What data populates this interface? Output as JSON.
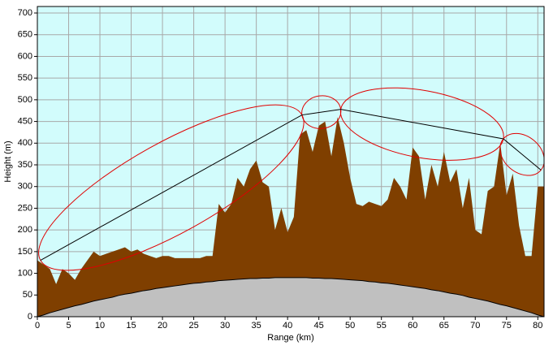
{
  "chart_data": {
    "type": "area",
    "x_label": "Range (km)",
    "y_label": "Height (m)",
    "xlim": [
      0,
      81
    ],
    "ylim": [
      0,
      715
    ],
    "xticks": [
      0,
      5,
      10,
      15,
      20,
      25,
      30,
      35,
      40,
      45,
      50,
      55,
      60,
      65,
      70,
      75,
      80
    ],
    "yticks": [
      0,
      50,
      100,
      150,
      200,
      250,
      300,
      350,
      400,
      450,
      500,
      550,
      600,
      650,
      700
    ],
    "grid": true,
    "background": "#d2fcfc",
    "x": [
      0,
      1,
      2,
      3,
      4,
      5,
      6,
      7,
      8,
      9,
      10,
      11,
      12,
      13,
      14,
      15,
      16,
      17,
      18,
      19,
      20,
      21,
      22,
      23,
      24,
      25,
      26,
      27,
      28,
      29,
      30,
      31,
      32,
      33,
      34,
      35,
      36,
      37,
      38,
      39,
      40,
      41,
      42,
      43,
      44,
      45,
      46,
      47,
      48,
      49,
      50,
      51,
      52,
      53,
      54,
      55,
      56,
      57,
      58,
      59,
      60,
      61,
      62,
      63,
      64,
      65,
      66,
      67,
      68,
      69,
      70,
      71,
      72,
      73,
      74,
      75,
      76,
      77,
      78,
      79,
      80,
      81
    ],
    "series": [
      {
        "color": "#7f3f00",
        "values": [
          130,
          120,
          110,
          75,
          110,
          100,
          85,
          110,
          130,
          150,
          140,
          145,
          150,
          155,
          160,
          150,
          155,
          145,
          140,
          135,
          140,
          140,
          135,
          135,
          135,
          135,
          135,
          140,
          140,
          260,
          240,
          260,
          320,
          300,
          340,
          360,
          310,
          300,
          200,
          250,
          195,
          230,
          420,
          430,
          380,
          440,
          450,
          370,
          460,
          400,
          320,
          260,
          255,
          265,
          260,
          255,
          270,
          320,
          300,
          270,
          390,
          370,
          270,
          350,
          300,
          380,
          310,
          340,
          250,
          320,
          200,
          190,
          290,
          300,
          400,
          280,
          330,
          210,
          140,
          140,
          300,
          300
        ]
      },
      {
        "color": "#c0c0c0",
        "values": [
          0,
          4,
          9,
          13,
          17,
          21,
          25,
          28,
          32,
          36,
          39,
          42,
          45,
          49,
          52,
          54,
          57,
          60,
          62,
          65,
          67,
          69,
          71,
          73,
          75,
          77,
          78,
          80,
          81,
          83,
          84,
          85,
          86,
          87,
          88,
          88,
          89,
          89,
          90,
          90,
          90,
          90,
          90,
          90,
          89,
          89,
          88,
          88,
          87,
          86,
          85,
          84,
          83,
          81,
          80,
          78,
          77,
          75,
          73,
          71,
          69,
          67,
          65,
          62,
          60,
          57,
          54,
          52,
          49,
          45,
          42,
          39,
          36,
          32,
          28,
          25,
          21,
          17,
          13,
          9,
          4,
          0
        ]
      }
    ],
    "link": {
      "color": "#000000",
      "fresnel_color": "#e00000",
      "x": [
        0.5,
        42.3,
        48.5,
        74.5,
        80.5
      ],
      "values": [
        130,
        465,
        478,
        410,
        338
      ]
    }
  }
}
